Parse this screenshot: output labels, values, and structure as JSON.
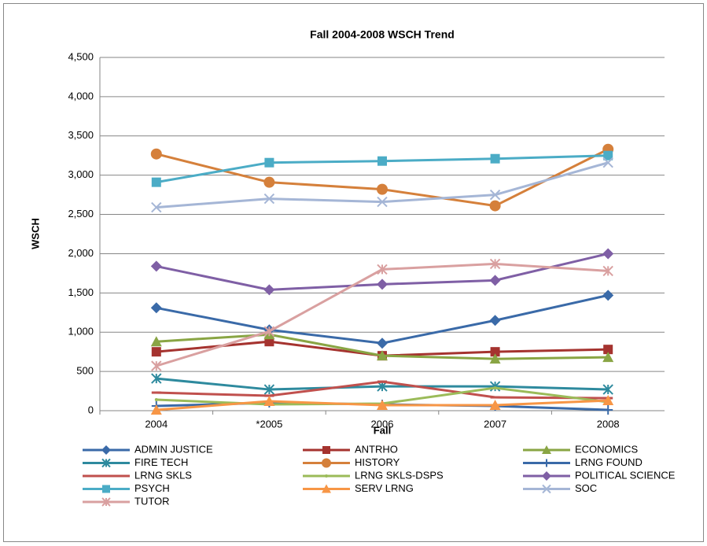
{
  "chart_data": {
    "type": "line",
    "title": "Fall 2004-2008 WSCH Trend",
    "x_label": "Fall",
    "y_label": "WSCH",
    "categories": [
      "2004",
      "*2005",
      "2006",
      "2007",
      "2008"
    ],
    "ylim": [
      0,
      4500
    ],
    "yticks": [
      0,
      500,
      {
        "value": 1000,
        "label": "1,000"
      },
      {
        "value": 1500,
        "label": "1,500"
      },
      {
        "value": 2000,
        "label": "2,000"
      },
      {
        "value": 2500,
        "label": "2,500"
      },
      {
        "value": 3000,
        "label": "3,000"
      },
      {
        "value": 3500,
        "label": "3,500"
      },
      {
        "value": 4000,
        "label": "4,000"
      },
      {
        "value": 4500,
        "label": "4,500"
      }
    ],
    "grid": true,
    "legend": "bottom",
    "series": [
      {
        "name": "ADMIN JUSTICE",
        "color": "#3a6aa8",
        "marker": "diamond",
        "values": [
          1310,
          1030,
          860,
          1150,
          1470
        ]
      },
      {
        "name": "ANTRHO",
        "color": "#a5332f",
        "marker": "square",
        "values": [
          750,
          880,
          700,
          750,
          780
        ]
      },
      {
        "name": "ECONOMICS",
        "color": "#89a544",
        "marker": "triangle",
        "values": [
          880,
          970,
          700,
          660,
          680
        ]
      },
      {
        "name": "FIRE TECH",
        "color": "#2e8a9e",
        "marker": "asterisk",
        "values": [
          410,
          270,
          310,
          310,
          270
        ]
      },
      {
        "name": "HISTORY",
        "color": "#d5803b",
        "marker": "circle",
        "values": [
          3270,
          2910,
          2820,
          2610,
          3330
        ]
      },
      {
        "name": "LRNG FOUND",
        "color": "#3a6aa8",
        "marker": "plus",
        "values": [
          60,
          100,
          80,
          60,
          10
        ]
      },
      {
        "name": "LRNG SKLS",
        "color": "#c0504d",
        "marker": "dash",
        "values": [
          230,
          190,
          370,
          170,
          160
        ]
      },
      {
        "name": "LRNG SKLS-DSPS",
        "color": "#9bbb59",
        "marker": "none",
        "values": [
          140,
          80,
          90,
          290,
          110
        ]
      },
      {
        "name": "POLITICAL SCIENCE",
        "color": "#7f5fa5",
        "marker": "diamond",
        "values": [
          1840,
          1540,
          1610,
          1660,
          2000
        ]
      },
      {
        "name": "PSYCH",
        "color": "#4bacc6",
        "marker": "square",
        "values": [
          2910,
          3160,
          3180,
          3210,
          3250
        ]
      },
      {
        "name": "SERV LRNG",
        "color": "#f79646",
        "marker": "triangle",
        "values": [
          10,
          120,
          70,
          70,
          130
        ]
      },
      {
        "name": "SOC",
        "color": "#a5b6d6",
        "marker": "cross",
        "values": [
          2590,
          2700,
          2660,
          2750,
          3160
        ]
      },
      {
        "name": "TUTOR",
        "color": "#d9a0a0",
        "marker": "asterisk",
        "values": [
          570,
          1010,
          1800,
          1870,
          1780
        ]
      }
    ]
  }
}
